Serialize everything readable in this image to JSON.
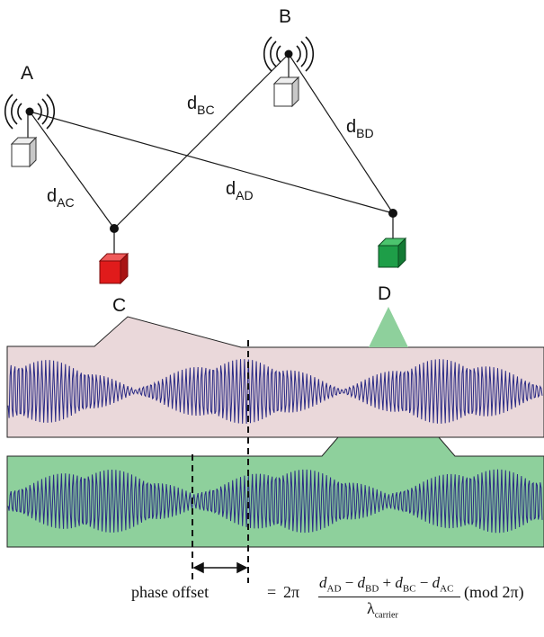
{
  "nodes": {
    "A": {
      "label": "A"
    },
    "B": {
      "label": "B"
    },
    "C": {
      "label": "C"
    },
    "D": {
      "label": "D"
    }
  },
  "distances": {
    "AC": {
      "d": "d",
      "sub": "AC"
    },
    "BC": {
      "d": "d",
      "sub": "BC"
    },
    "AD": {
      "d": "d",
      "sub": "AD"
    },
    "BD": {
      "d": "d",
      "sub": "BD"
    }
  },
  "colors": {
    "top_panel": "#ead8da",
    "bottom_panel": "#8ed09c",
    "wave": "#2a2a84",
    "node_c": "#e01b1b",
    "node_d": "#1e9e48",
    "transmitter": "#ffffff"
  },
  "formula": {
    "left": "phase offset",
    "equals": "=",
    "factor": "2π",
    "numerator": [
      {
        "t": "d",
        "s": "AD"
      },
      {
        "op": " − "
      },
      {
        "t": "d",
        "s": "BD"
      },
      {
        "op": " + "
      },
      {
        "t": "d",
        "s": "BC"
      },
      {
        "op": " − "
      },
      {
        "t": "d",
        "s": "AC"
      }
    ],
    "denominator": "λ",
    "denominator_sub": "carrier",
    "modulo": "(mod 2π)"
  }
}
